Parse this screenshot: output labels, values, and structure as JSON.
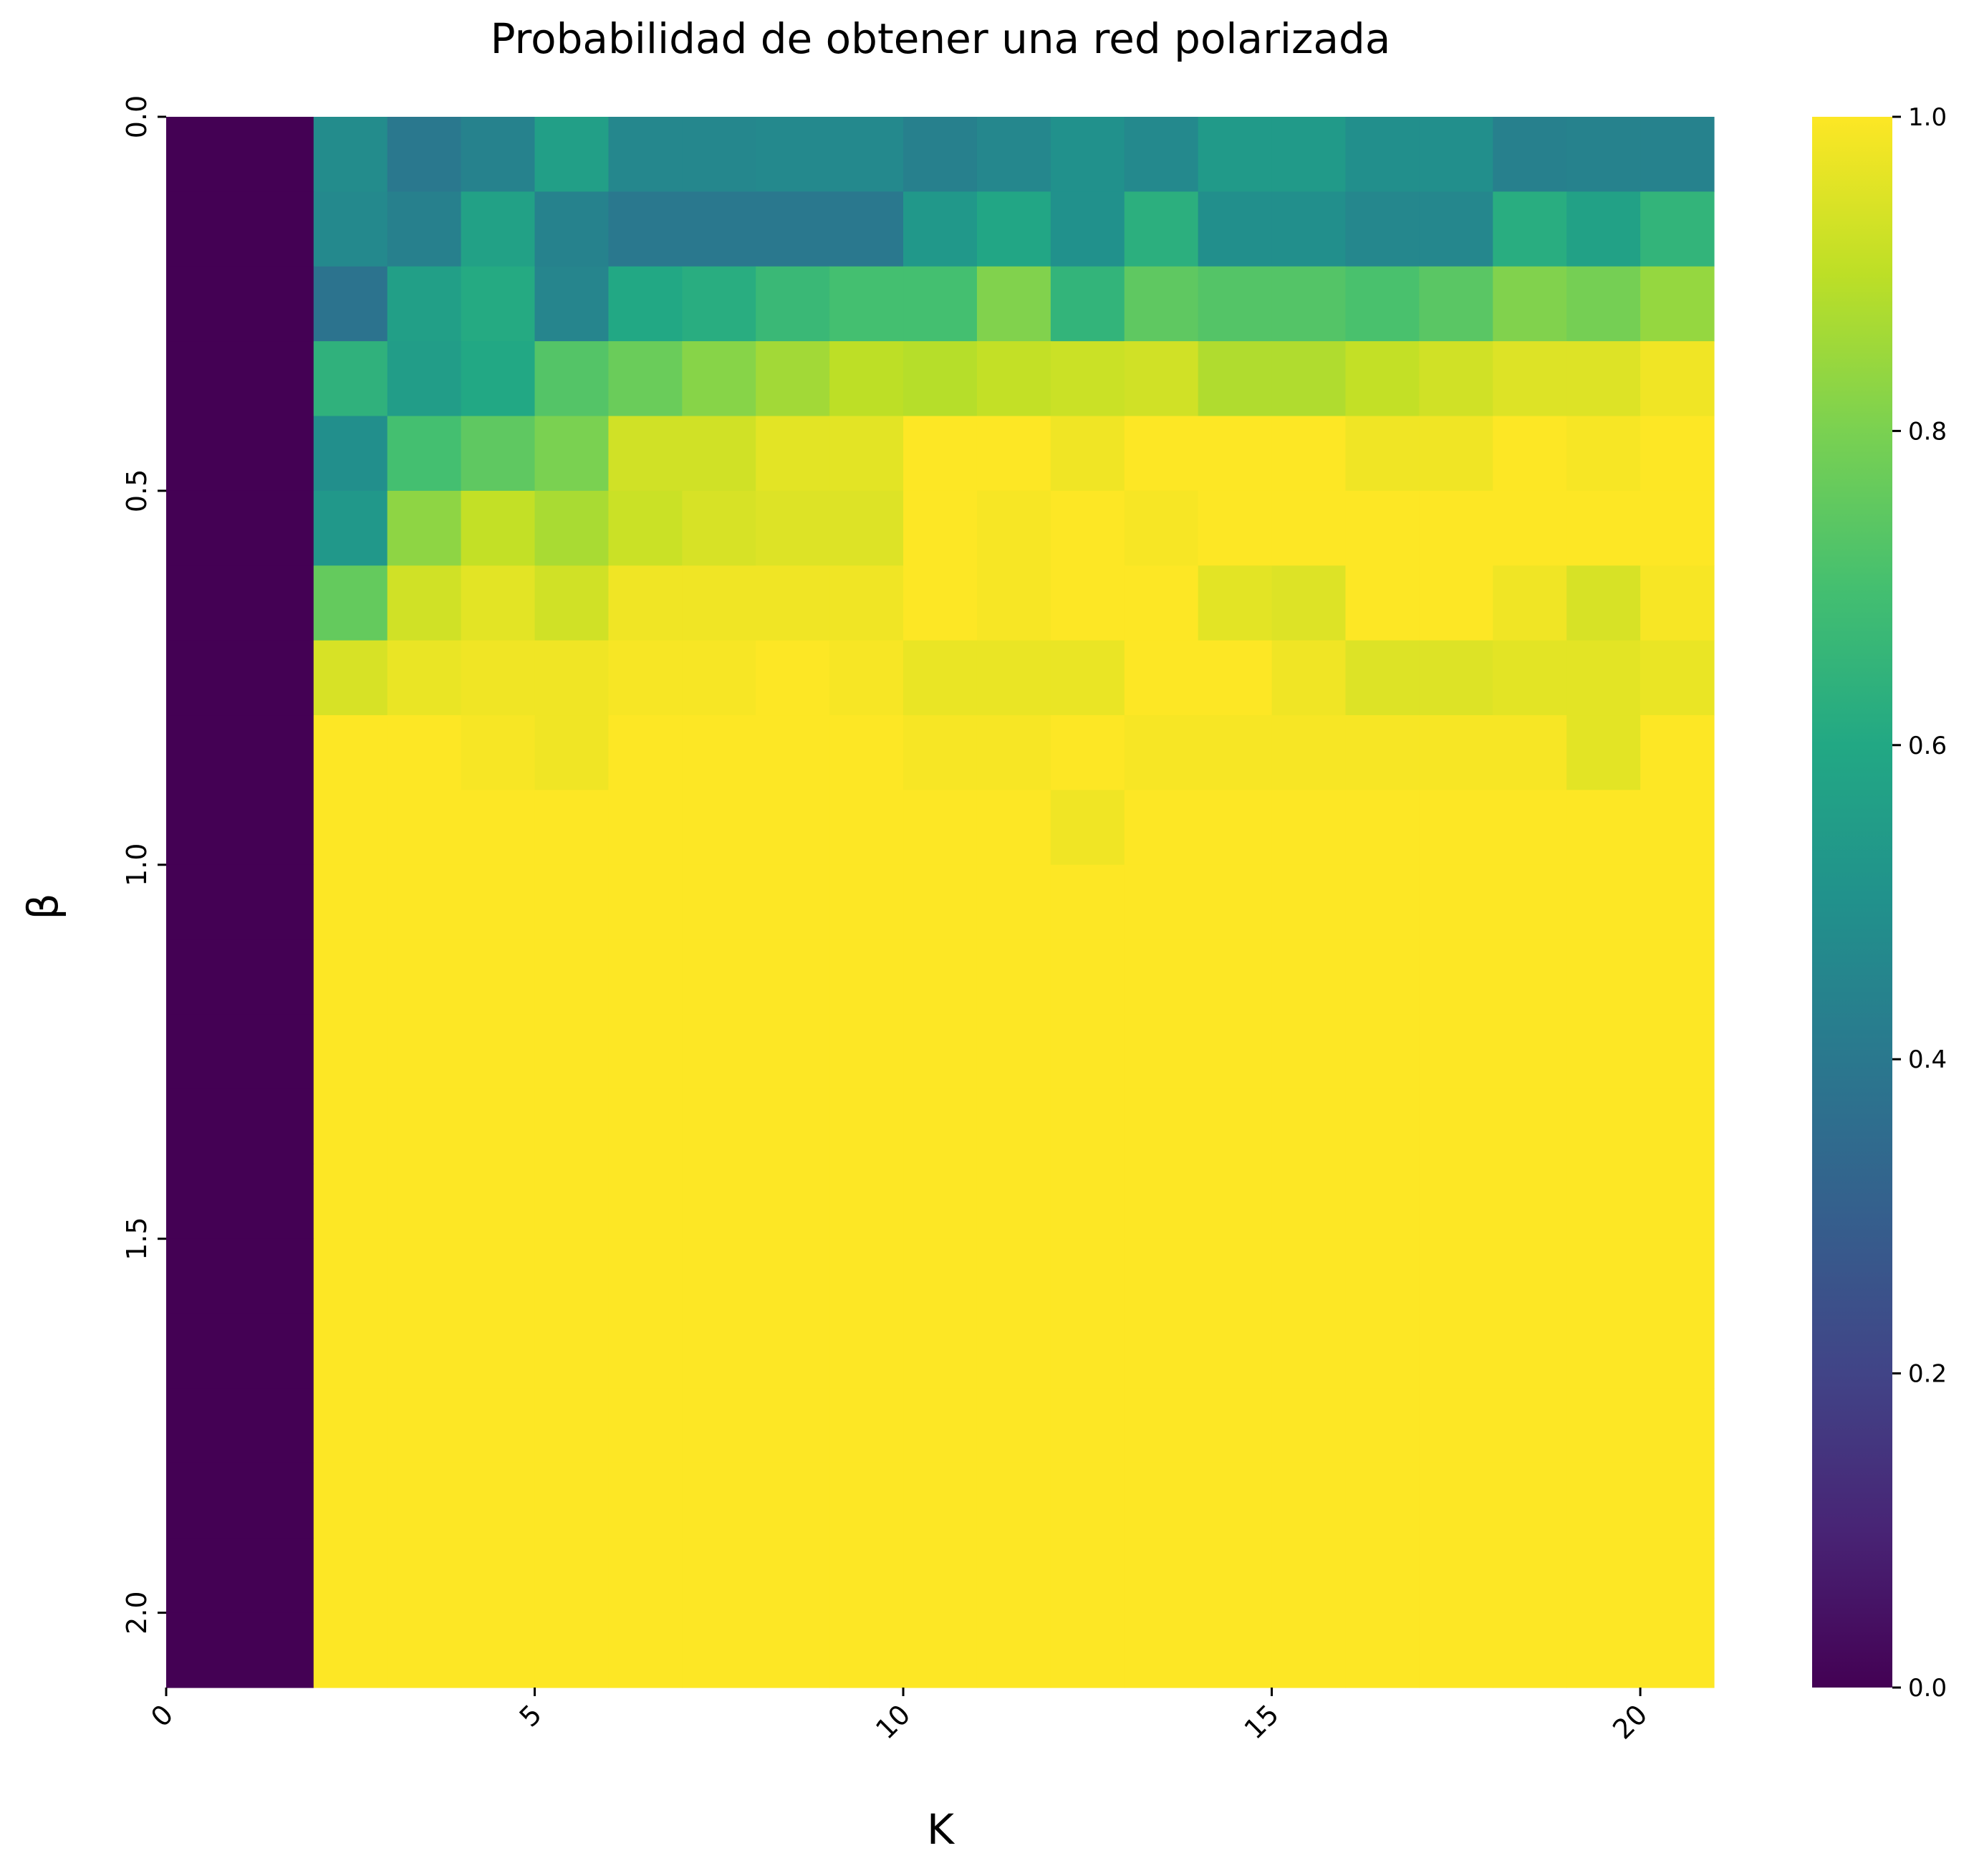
{
  "chart_data": {
    "type": "heatmap",
    "title": "Probabilidad de obtener una red polarizada",
    "xlabel": "K",
    "ylabel": "β",
    "colormap": "viridis",
    "x_ticks": [
      "0",
      "5",
      "10",
      "15",
      "20"
    ],
    "y_ticks": [
      "0.0",
      "0.5",
      "1.0",
      "1.5",
      "2.0"
    ],
    "colorbar_ticks": [
      "0.0",
      "0.2",
      "0.4",
      "0.6",
      "0.8",
      "1.0"
    ],
    "colorbar_range": [
      0,
      1
    ],
    "x_range": [
      0,
      21
    ],
    "y_range": [
      0,
      2.1
    ],
    "cell_width": 1,
    "cell_height": 0.1,
    "columns_first_width": 2,
    "columns_x_start": [
      0,
      2,
      3,
      4,
      5,
      6,
      7,
      8,
      9,
      10,
      11,
      12,
      13,
      14,
      15,
      16,
      17,
      18,
      19,
      20
    ],
    "values": [
      [
        0,
        0.48,
        0.4,
        0.44,
        0.56,
        0.46,
        0.46,
        0.47,
        0.47,
        0.43,
        0.46,
        0.5,
        0.47,
        0.54,
        0.54,
        0.49,
        0.49,
        0.43,
        0.44,
        0.44
      ],
      [
        0,
        0.47,
        0.43,
        0.57,
        0.44,
        0.4,
        0.4,
        0.4,
        0.4,
        0.53,
        0.59,
        0.5,
        0.63,
        0.49,
        0.49,
        0.46,
        0.46,
        0.62,
        0.57,
        0.65
      ],
      [
        0,
        0.38,
        0.56,
        0.61,
        0.45,
        0.6,
        0.62,
        0.67,
        0.7,
        0.7,
        0.81,
        0.65,
        0.75,
        0.73,
        0.73,
        0.71,
        0.74,
        0.81,
        0.79,
        0.84
      ],
      [
        0,
        0.64,
        0.55,
        0.6,
        0.73,
        0.77,
        0.82,
        0.86,
        0.9,
        0.89,
        0.91,
        0.92,
        0.93,
        0.88,
        0.88,
        0.91,
        0.93,
        0.95,
        0.95,
        0.98
      ],
      [
        0,
        0.49,
        0.7,
        0.75,
        0.8,
        0.93,
        0.93,
        0.96,
        0.96,
        1.0,
        1.0,
        0.98,
        1.0,
        1.0,
        1.0,
        0.98,
        0.98,
        1.0,
        0.99,
        1.0
      ],
      [
        0,
        0.53,
        0.83,
        0.91,
        0.87,
        0.92,
        0.94,
        0.95,
        0.95,
        1.0,
        0.99,
        1.0,
        0.99,
        1.0,
        1.0,
        1.0,
        1.0,
        1.0,
        1.0,
        1.0
      ],
      [
        0,
        0.76,
        0.93,
        0.96,
        0.93,
        0.98,
        0.98,
        0.98,
        0.98,
        1.0,
        0.99,
        1.0,
        1.0,
        0.96,
        0.95,
        1.0,
        1.0,
        0.98,
        0.94,
        0.99
      ],
      [
        0,
        0.94,
        0.97,
        0.98,
        0.98,
        0.99,
        0.99,
        1.0,
        0.99,
        0.97,
        0.97,
        0.97,
        1.0,
        1.0,
        0.98,
        0.95,
        0.95,
        0.96,
        0.96,
        0.97
      ],
      [
        0,
        1.0,
        1.0,
        0.99,
        0.98,
        1.0,
        1.0,
        1.0,
        1.0,
        0.99,
        0.99,
        1.0,
        0.99,
        0.99,
        0.99,
        0.99,
        0.99,
        0.99,
        0.96,
        1.0
      ],
      [
        0,
        1.0,
        1.0,
        1.0,
        1.0,
        1.0,
        1.0,
        1.0,
        1.0,
        1.0,
        1.0,
        0.98,
        1.0,
        1.0,
        1.0,
        1.0,
        1.0,
        1.0,
        1.0,
        1.0
      ],
      [
        0,
        1.0,
        1.0,
        1.0,
        1.0,
        1.0,
        1.0,
        1.0,
        1.0,
        1.0,
        1.0,
        1.0,
        1.0,
        1.0,
        1.0,
        1.0,
        1.0,
        1.0,
        1.0,
        1.0
      ],
      [
        0,
        1.0,
        1.0,
        1.0,
        1.0,
        1.0,
        1.0,
        1.0,
        1.0,
        1.0,
        1.0,
        1.0,
        1.0,
        1.0,
        1.0,
        1.0,
        1.0,
        1.0,
        1.0,
        1.0
      ],
      [
        0,
        1.0,
        1.0,
        1.0,
        1.0,
        1.0,
        1.0,
        1.0,
        1.0,
        1.0,
        1.0,
        1.0,
        1.0,
        1.0,
        1.0,
        1.0,
        1.0,
        1.0,
        1.0,
        1.0
      ],
      [
        0,
        1.0,
        1.0,
        1.0,
        1.0,
        1.0,
        1.0,
        1.0,
        1.0,
        1.0,
        1.0,
        1.0,
        1.0,
        1.0,
        1.0,
        1.0,
        1.0,
        1.0,
        1.0,
        1.0
      ],
      [
        0,
        1.0,
        1.0,
        1.0,
        1.0,
        1.0,
        1.0,
        1.0,
        1.0,
        1.0,
        1.0,
        1.0,
        1.0,
        1.0,
        1.0,
        1.0,
        1.0,
        1.0,
        1.0,
        1.0
      ],
      [
        0,
        1.0,
        1.0,
        1.0,
        1.0,
        1.0,
        1.0,
        1.0,
        1.0,
        1.0,
        1.0,
        1.0,
        1.0,
        1.0,
        1.0,
        1.0,
        1.0,
        1.0,
        1.0,
        1.0
      ],
      [
        0,
        1.0,
        1.0,
        1.0,
        1.0,
        1.0,
        1.0,
        1.0,
        1.0,
        1.0,
        1.0,
        1.0,
        1.0,
        1.0,
        1.0,
        1.0,
        1.0,
        1.0,
        1.0,
        1.0
      ],
      [
        0,
        1.0,
        1.0,
        1.0,
        1.0,
        1.0,
        1.0,
        1.0,
        1.0,
        1.0,
        1.0,
        1.0,
        1.0,
        1.0,
        1.0,
        1.0,
        1.0,
        1.0,
        1.0,
        1.0
      ],
      [
        0,
        1.0,
        1.0,
        1.0,
        1.0,
        1.0,
        1.0,
        1.0,
        1.0,
        1.0,
        1.0,
        1.0,
        1.0,
        1.0,
        1.0,
        1.0,
        1.0,
        1.0,
        1.0,
        1.0
      ],
      [
        0,
        1.0,
        1.0,
        1.0,
        1.0,
        1.0,
        1.0,
        1.0,
        1.0,
        1.0,
        1.0,
        1.0,
        1.0,
        1.0,
        1.0,
        1.0,
        1.0,
        1.0,
        1.0,
        1.0
      ],
      [
        0,
        1.0,
        1.0,
        1.0,
        1.0,
        1.0,
        1.0,
        1.0,
        1.0,
        1.0,
        1.0,
        1.0,
        1.0,
        1.0,
        1.0,
        1.0,
        1.0,
        1.0,
        1.0,
        1.0
      ]
    ]
  }
}
